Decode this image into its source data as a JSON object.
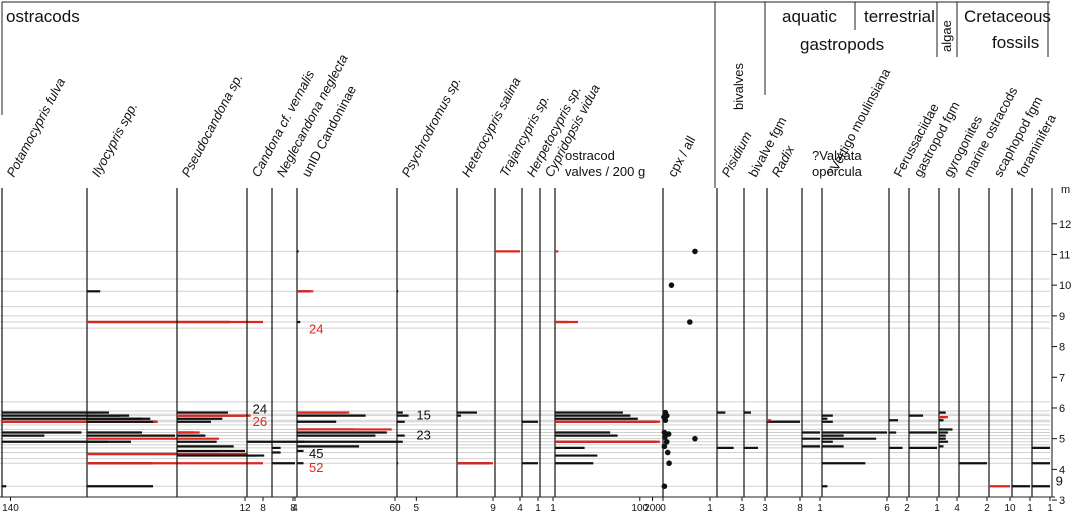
{
  "chart_data": {
    "type": "bar",
    "title": "",
    "ylabel": "m",
    "ylim": [
      3,
      13
    ],
    "y_ticks": [
      "3",
      "4",
      "5",
      "6",
      "7",
      "8",
      "9",
      "10",
      "11",
      "12"
    ],
    "sample_depths": [
      11.1,
      10.2,
      9.8,
      9.3,
      9.0,
      8.8,
      8.6,
      6.2,
      5.9,
      5.8,
      5.75,
      5.6,
      5.55,
      5.45,
      5.3,
      5.2,
      5.1,
      5.0,
      4.9,
      4.8,
      4.7,
      4.55,
      4.35,
      4.2,
      3.45
    ],
    "group_headers": {
      "ostracods": "ostracods",
      "bivalves": "bivalves",
      "aquatic": "aquatic",
      "terrestrial": "terrestrial",
      "gastropods": "gastropods",
      "algae": "algae",
      "cretaceous": "Cretaceous",
      "fossils": "fossils"
    },
    "panels": [
      {
        "name": "Potamocypris fulva",
        "italic": true,
        "axis_ticks": [
          "140"
        ],
        "bars": [
          [
            5.85,
            90
          ],
          [
            5.75,
            120
          ],
          [
            5.65,
            140
          ],
          [
            5.55,
            145
          ],
          [
            5.2,
            75
          ],
          [
            5.1,
            40
          ],
          [
            4.9,
            100
          ],
          [
            3.45,
            4
          ]
        ],
        "red": [
          [
            5.55,
            147
          ]
        ]
      },
      {
        "name": "Ilyocypris spp.",
        "italic": true,
        "axis_ticks": [
          "8"
        ],
        "bars": [
          [
            9.8,
            0.6
          ],
          [
            8.8,
            6.5
          ],
          [
            5.85,
            1
          ],
          [
            5.75,
            1.5
          ],
          [
            5.65,
            2.5
          ],
          [
            5.55,
            3
          ],
          [
            5.2,
            2.5
          ],
          [
            5.1,
            4
          ],
          [
            4.9,
            2
          ],
          [
            4.5,
            6
          ],
          [
            4.2,
            3
          ],
          [
            3.45,
            3
          ]
        ],
        "red": [
          [
            8.8,
            8
          ],
          [
            5.0,
            6
          ],
          [
            4.5,
            7.3
          ],
          [
            4.2,
            8
          ]
        ],
        "annotations": [
          {
            "text": "24",
            "color": "red",
            "at": [
              8.55,
              10
            ]
          },
          {
            "text": "45",
            "color": "black",
            "at": [
              4.5,
              10
            ]
          },
          {
            "text": "52",
            "color": "red",
            "at": [
              4.05,
              10
            ]
          }
        ]
      },
      {
        "name": "Pseudocandona sp.",
        "italic": true,
        "axis_ticks": [
          "12"
        ],
        "bars": [
          [
            5.85,
            9
          ],
          [
            5.75,
            12
          ],
          [
            5.65,
            8
          ],
          [
            5.55,
            6
          ],
          [
            5.2,
            3
          ],
          [
            5.1,
            5
          ],
          [
            4.9,
            7
          ],
          [
            4.75,
            10
          ],
          [
            4.6,
            12
          ],
          [
            4.45,
            14
          ]
        ],
        "red": [
          [
            5.75,
            13
          ],
          [
            5.2,
            4
          ]
        ],
        "annotations": [
          {
            "text": "24",
            "color": "black",
            "at": [
              5.95,
              13
            ]
          },
          {
            "text": "26",
            "color": "red",
            "at": [
              5.55,
              13
            ]
          }
        ]
      },
      {
        "name": "Candona cf. vernalis",
        "italic": true,
        "axis_ticks": [
          "8"
        ],
        "bars": [
          [
            4.9,
            10
          ],
          [
            4.45,
            3
          ]
        ],
        "red": []
      },
      {
        "name": "Neglecandona neglecta",
        "italic": true,
        "axis_ticks": [
          "4"
        ],
        "bars": [
          [
            4.7,
            1.5
          ],
          [
            4.55,
            1.5
          ],
          [
            4.2,
            4
          ]
        ],
        "red": []
      },
      {
        "name": "unID Candoninae",
        "italic": false,
        "axis_ticks": [
          "60"
        ],
        "bars": [
          [
            11.1,
            1
          ],
          [
            9.8,
            8
          ],
          [
            8.8,
            2
          ],
          [
            5.85,
            30
          ],
          [
            5.75,
            42
          ],
          [
            5.55,
            24
          ],
          [
            5.3,
            35
          ],
          [
            5.2,
            55
          ],
          [
            5.1,
            48
          ],
          [
            4.9,
            62
          ],
          [
            4.75,
            38
          ],
          [
            4.6,
            4
          ],
          [
            4.2,
            4
          ]
        ],
        "red": [
          [
            9.8,
            10
          ],
          [
            5.85,
            32
          ],
          [
            5.3,
            58
          ]
        ]
      },
      {
        "name": "Psychrodromus sp.",
        "italic": true,
        "axis_ticks": [
          "5"
        ],
        "bars": [
          [
            9.8,
            0.3
          ],
          [
            5.85,
            1.5
          ],
          [
            5.75,
            3
          ],
          [
            5.55,
            2
          ],
          [
            5.1,
            2
          ],
          [
            4.9,
            1.5
          ],
          [
            4.2,
            0.3
          ]
        ],
        "red": [],
        "annotations": [
          {
            "text": "15",
            "color": "black",
            "at": [
              5.75,
              4.5
            ]
          },
          {
            "text": "23",
            "color": "black",
            "at": [
              5.1,
              4.5
            ]
          }
        ]
      },
      {
        "name": "Heterocypris salina",
        "italic": true,
        "axis_ticks": [
          "9"
        ],
        "bars": [
          [
            5.85,
            5
          ],
          [
            5.75,
            1
          ],
          [
            4.2,
            8
          ]
        ],
        "red": [
          [
            4.2,
            9
          ]
        ]
      },
      {
        "name": "Trajancypris sp.",
        "italic": true,
        "axis_ticks": [
          "4"
        ],
        "bars": [],
        "red": [
          [
            11.1,
            4
          ]
        ]
      },
      {
        "name": "Herpetocypris sp.",
        "italic": true,
        "axis_ticks": [
          "1"
        ],
        "bars": [
          [
            5.55,
            1
          ],
          [
            4.2,
            1
          ]
        ],
        "red": []
      },
      {
        "name": "Cypridopsis vidua",
        "italic": true,
        "axis_ticks": [
          "1"
        ],
        "bars": [],
        "red": []
      },
      {
        "name": "ostracod valves / 200 g",
        "italic": false,
        "log": true,
        "axis_ticks": [
          "100",
          "200"
        ],
        "bars": [
          [
            11.1,
            1
          ],
          [
            9.8,
            1
          ],
          [
            8.8,
            2
          ],
          [
            5.85,
            40
          ],
          [
            5.75,
            60
          ],
          [
            5.65,
            90
          ],
          [
            5.55,
            250
          ],
          [
            5.2,
            20
          ],
          [
            5.1,
            30
          ],
          [
            4.9,
            250
          ],
          [
            4.7,
            5
          ],
          [
            4.45,
            10
          ],
          [
            4.2,
            8
          ],
          [
            3.45,
            1
          ]
        ],
        "red": [
          [
            11.1,
            1.2
          ],
          [
            8.8,
            3.5
          ],
          [
            5.55,
            300
          ],
          [
            4.9,
            300
          ]
        ]
      },
      {
        "name": "cpx / all",
        "italic": false,
        "axis_ticks": [
          "0",
          "1"
        ],
        "dots": [
          [
            11.1,
            0.68
          ],
          [
            10.0,
            0.18
          ],
          [
            8.8,
            0.57
          ],
          [
            5.85,
            0.05
          ],
          [
            5.75,
            0.08
          ],
          [
            5.7,
            0.02
          ],
          [
            5.6,
            0.05
          ],
          [
            5.2,
            0.03
          ],
          [
            5.15,
            0.12
          ],
          [
            5.05,
            0.04
          ],
          [
            5.0,
            0.68
          ],
          [
            4.9,
            0.08
          ],
          [
            4.75,
            0.03
          ],
          [
            4.55,
            0.1
          ],
          [
            4.2,
            0.13
          ],
          [
            3.45,
            0.03
          ]
        ]
      },
      {
        "name": "Pisidium",
        "italic": true,
        "axis_ticks": [
          "3"
        ],
        "bars": [
          [
            5.85,
            1
          ],
          [
            4.7,
            2
          ]
        ],
        "red": []
      },
      {
        "name": "bivalve fgm",
        "italic": false,
        "axis_ticks": [
          "3"
        ],
        "bars": [
          [
            5.85,
            1
          ],
          [
            4.7,
            2
          ]
        ],
        "red": []
      },
      {
        "name": "Radix",
        "italic": true,
        "axis_ticks": [
          "8"
        ],
        "bars": [
          [
            5.55,
            8
          ]
        ],
        "red": [
          [
            5.6,
            1
          ]
        ]
      },
      {
        "name": "?Valvata opercula",
        "italic": false,
        "axis_ticks": [
          "1"
        ],
        "bars": [
          [
            5.2,
            1
          ],
          [
            5.0,
            1
          ],
          [
            4.75,
            1
          ]
        ],
        "red": []
      },
      {
        "name": "?Vertigo moulinsiana",
        "italic": false,
        "axis_ticks": [
          "6"
        ],
        "bars": [
          [
            5.75,
            1
          ],
          [
            5.65,
            0.5
          ],
          [
            5.55,
            1
          ],
          [
            5.2,
            6
          ],
          [
            5.1,
            2
          ],
          [
            5.0,
            5
          ],
          [
            4.9,
            1
          ],
          [
            4.75,
            2
          ],
          [
            4.2,
            4
          ],
          [
            3.45,
            0.5
          ]
        ],
        "red": []
      },
      {
        "name": "Ferussaciidae",
        "italic": false,
        "axis_ticks": [
          "2"
        ],
        "bars": [
          [
            5.6,
            1
          ],
          [
            5.2,
            0.8
          ],
          [
            4.7,
            1.5
          ]
        ],
        "red": []
      },
      {
        "name": "gastropod fgm",
        "italic": false,
        "axis_ticks": [
          "1"
        ],
        "bars": [
          [
            5.75,
            0.5
          ],
          [
            5.2,
            1
          ],
          [
            4.7,
            1
          ]
        ],
        "red": []
      },
      {
        "name": "gyrogonites",
        "italic": false,
        "axis_ticks": [
          "4"
        ],
        "bars": [
          [
            5.85,
            1.5
          ],
          [
            5.7,
            1.5
          ],
          [
            5.6,
            1
          ],
          [
            5.3,
            3
          ],
          [
            5.2,
            2
          ],
          [
            5.1,
            1.5
          ],
          [
            5.0,
            1.5
          ],
          [
            4.9,
            2
          ],
          [
            4.75,
            1
          ]
        ],
        "red": [
          [
            5.7,
            2
          ]
        ]
      },
      {
        "name": "marine ostracods",
        "italic": false,
        "axis_ticks": [
          "2"
        ],
        "bars": [
          [
            4.2,
            2
          ]
        ],
        "red": []
      },
      {
        "name": "scaphopod fgm",
        "italic": false,
        "axis_ticks": [
          "10"
        ],
        "bars": [],
        "red": [
          [
            3.45,
            10
          ]
        ]
      },
      {
        "name": "foraminifera",
        "italic": false,
        "axis_ticks": [
          "1"
        ],
        "bars": [
          [
            3.45,
            1
          ]
        ],
        "red": []
      },
      {
        "name": "",
        "italic": false,
        "axis_ticks": [
          "1"
        ],
        "bars": [
          [
            4.7,
            1
          ],
          [
            4.2,
            1
          ],
          [
            3.45,
            1
          ]
        ],
        "red": [],
        "annotations": [
          {
            "text": "9",
            "color": "black",
            "at": [
              3.6,
              1.2
            ]
          }
        ]
      }
    ]
  }
}
